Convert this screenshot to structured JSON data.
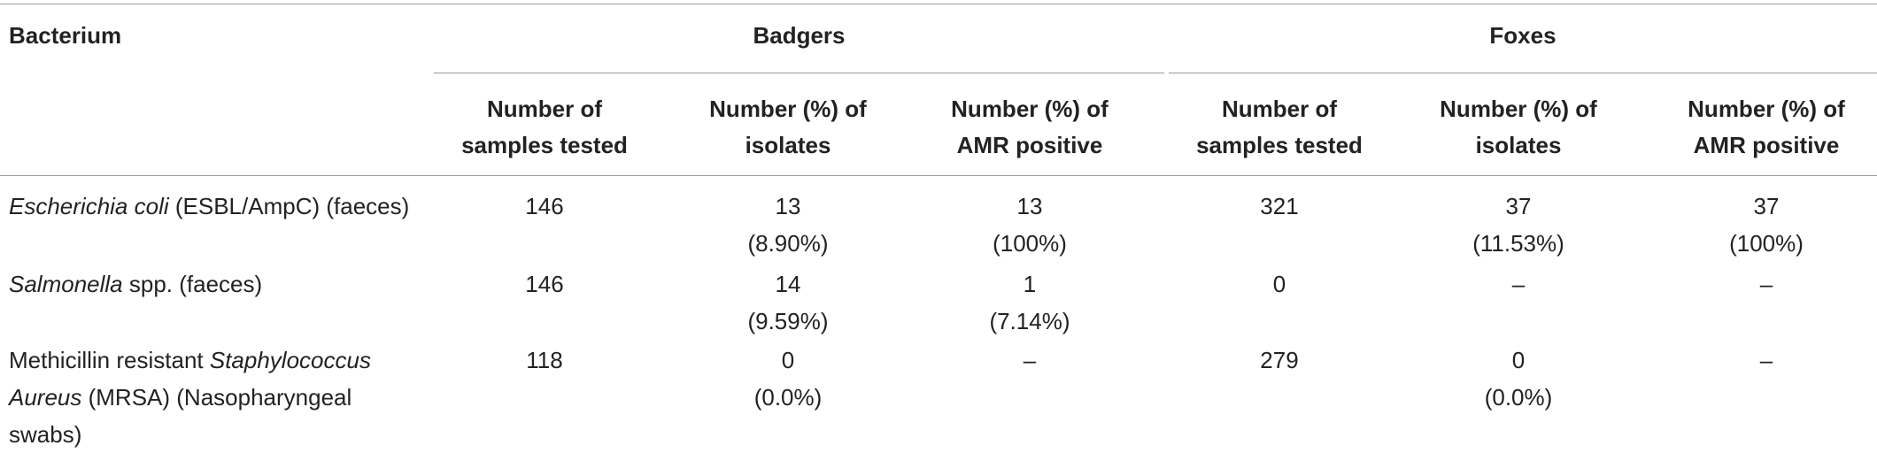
{
  "table": {
    "header": {
      "bacterium": "Bacterium",
      "groups": [
        "Badgers",
        "Foxes"
      ],
      "subcolumns": [
        "Number of samples tested",
        "Number (%) of isolates",
        "Number (%) of AMR positive",
        "Number of samples tested",
        "Number (%) of isolates",
        "Number (%) of AMR positive"
      ]
    },
    "rows": [
      {
        "label_italic": "Escherichia coli",
        "label_rest": " (ESBL/AmpC) (faeces)",
        "cells": [
          [
            "146"
          ],
          [
            "13",
            "(8.90%)"
          ],
          [
            "13",
            "(100%)"
          ],
          [
            "321"
          ],
          [
            "37",
            "(11.53%)"
          ],
          [
            "37",
            "(100%)"
          ]
        ]
      },
      {
        "label_italic": "Salmonella",
        "label_rest": " spp. (faeces)",
        "cells": [
          [
            "146"
          ],
          [
            "14",
            "(9.59%)"
          ],
          [
            "1",
            "(7.14%)"
          ],
          [
            "0"
          ],
          [
            "–"
          ],
          [
            "–"
          ]
        ]
      },
      {
        "label_pre": "Methicillin resistant ",
        "label_italic": "Staphylococcus Aureus",
        "label_rest": " (MRSA) (Nasopharyngeal swabs)",
        "cells": [
          [
            "118"
          ],
          [
            "0",
            "(0.0%)"
          ],
          [
            "–"
          ],
          [
            "279"
          ],
          [
            "0",
            "(0.0%)"
          ],
          [
            "–"
          ]
        ]
      }
    ]
  }
}
